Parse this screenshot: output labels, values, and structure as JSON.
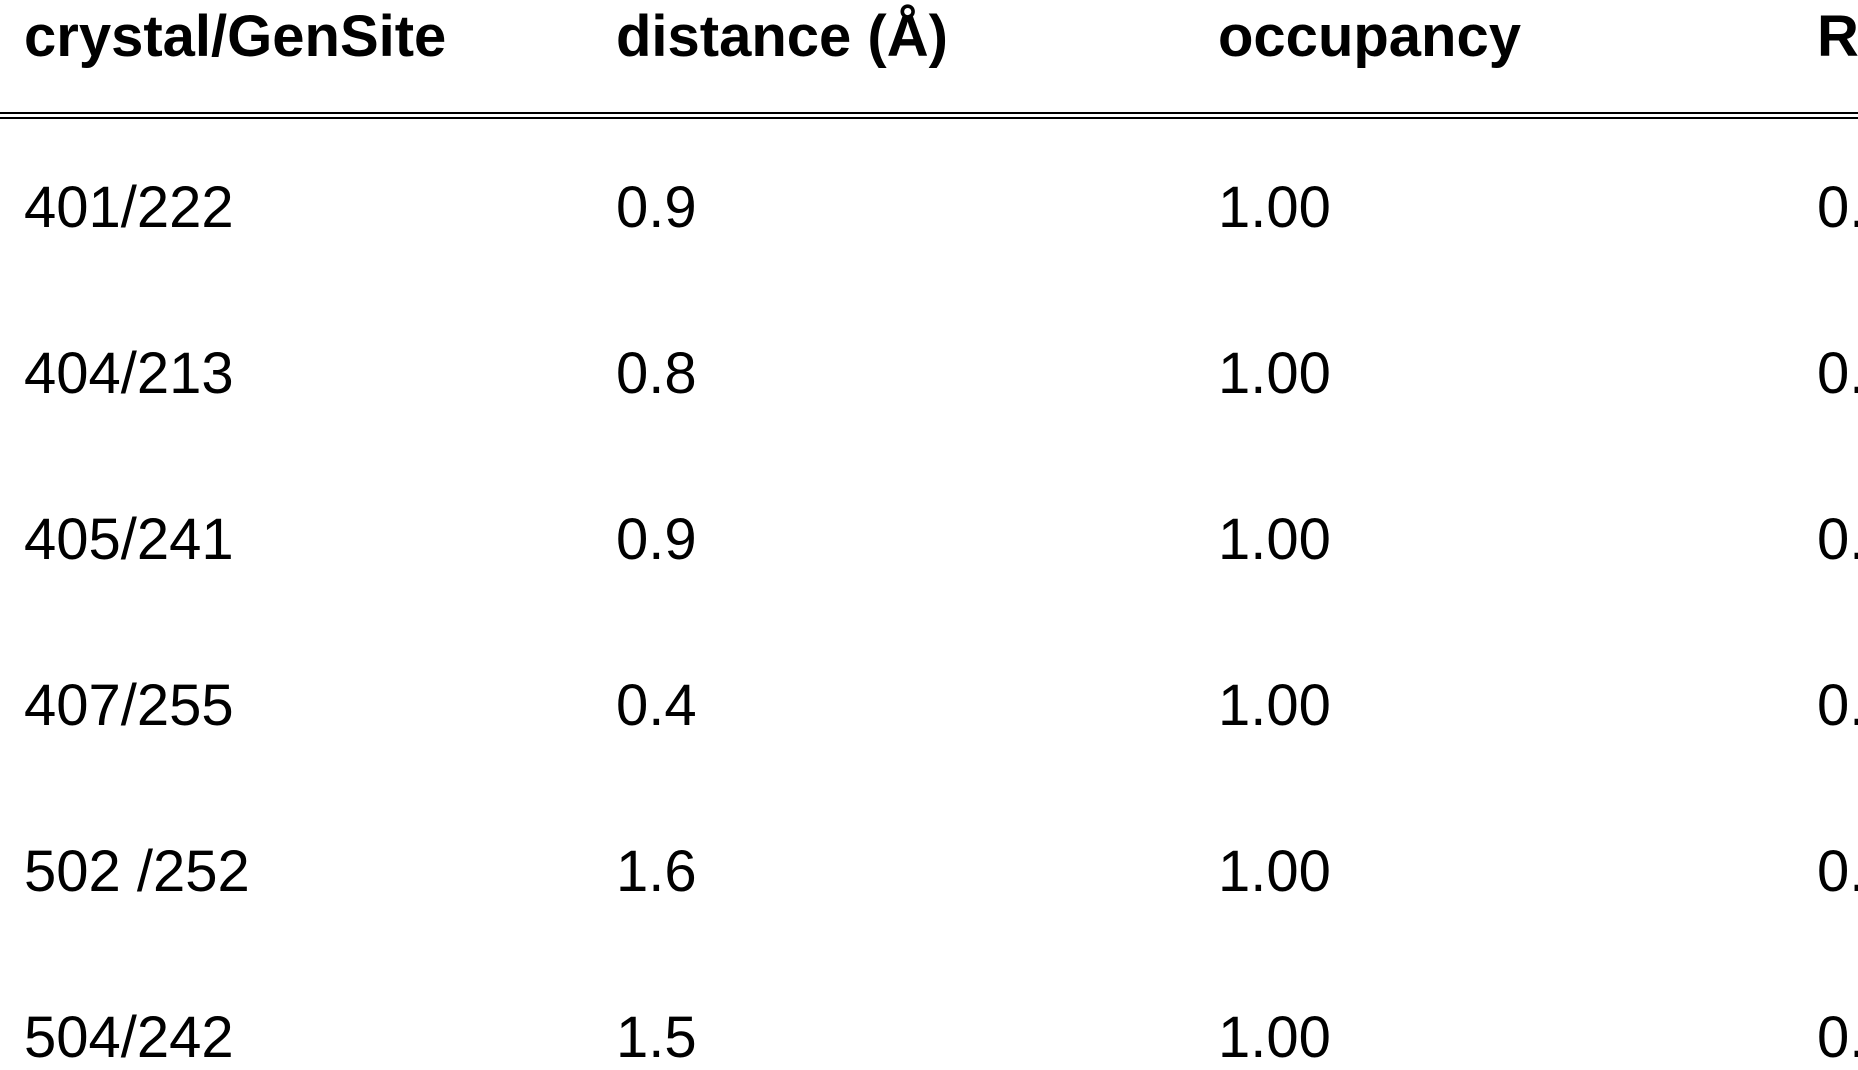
{
  "table": {
    "header": [
      "crystal/GenSite",
      "distance (Å)",
      "occupancy",
      "R"
    ],
    "rows": [
      [
        "401/222",
        "0.9",
        "1.00",
        "0."
      ],
      [
        "404/213",
        "0.8",
        "1.00",
        "0."
      ],
      [
        "405/241",
        "0.9",
        "1.00",
        "0."
      ],
      [
        "407/255",
        "0.4",
        "1.00",
        "0."
      ],
      [
        "502 /252",
        "1.6",
        "1.00",
        "0."
      ],
      [
        "504/242",
        "1.5",
        "1.00",
        "0."
      ]
    ]
  }
}
